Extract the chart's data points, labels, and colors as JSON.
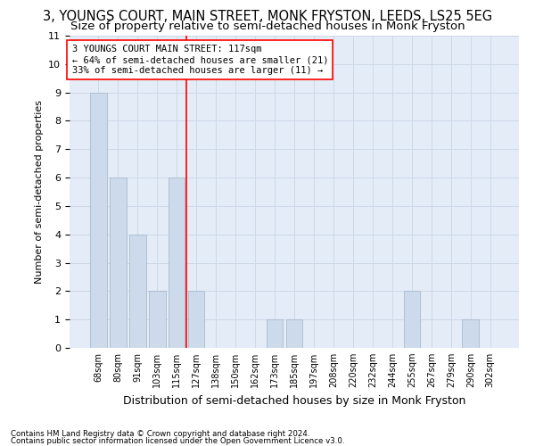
{
  "title": "3, YOUNGS COURT, MAIN STREET, MONK FRYSTON, LEEDS, LS25 5EG",
  "subtitle": "Size of property relative to semi-detached houses in Monk Fryston",
  "xlabel": "Distribution of semi-detached houses by size in Monk Fryston",
  "ylabel": "Number of semi-detached properties",
  "footer1": "Contains HM Land Registry data © Crown copyright and database right 2024.",
  "footer2": "Contains public sector information licensed under the Open Government Licence v3.0.",
  "categories": [
    "68sqm",
    "80sqm",
    "91sqm",
    "103sqm",
    "115sqm",
    "127sqm",
    "138sqm",
    "150sqm",
    "162sqm",
    "173sqm",
    "185sqm",
    "197sqm",
    "208sqm",
    "220sqm",
    "232sqm",
    "244sqm",
    "255sqm",
    "267sqm",
    "279sqm",
    "290sqm",
    "302sqm"
  ],
  "values": [
    9,
    6,
    4,
    2,
    6,
    2,
    0,
    0,
    0,
    1,
    1,
    0,
    0,
    0,
    0,
    0,
    2,
    0,
    0,
    1,
    0
  ],
  "bar_color": "#ccdaeb",
  "bar_edge_color": "#aabbcc",
  "ref_line_x": 4.5,
  "ref_line_label": "3 YOUNGS COURT MAIN STREET: 117sqm",
  "annotation_smaller": "← 64% of semi-detached houses are smaller (21)",
  "annotation_larger": "33% of semi-detached houses are larger (11) →",
  "ylim": [
    0,
    11
  ],
  "yticks": [
    0,
    1,
    2,
    3,
    4,
    5,
    6,
    7,
    8,
    9,
    10,
    11
  ],
  "grid_color": "#cdd8e8",
  "bg_color": "#e4ecf7",
  "title_fontsize": 10.5,
  "subtitle_fontsize": 9.5,
  "figwidth": 6.0,
  "figheight": 5.0,
  "dpi": 100
}
